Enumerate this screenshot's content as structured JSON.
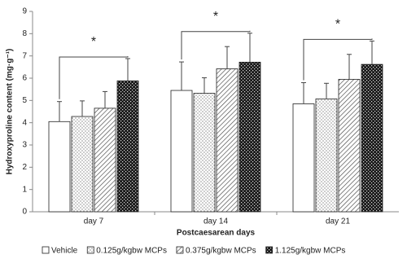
{
  "chart_data": {
    "type": "bar",
    "ylabel": "Hydroxyproline content (mg·g⁻¹)",
    "xlabel": "Postcaesarean days",
    "categories": [
      "day 7",
      "day 14",
      "day 21"
    ],
    "annotations": [
      "*",
      "*",
      "*"
    ],
    "series": [
      {
        "name": "Vehicle",
        "color": "#ffffff",
        "pattern": "none",
        "values": [
          4.05,
          5.45,
          4.85
        ],
        "errors": [
          0.9,
          1.28,
          0.95
        ]
      },
      {
        "name": "0.125g/kgbw MCPs",
        "color": "#ffffff",
        "pattern": "dots",
        "values": [
          4.28,
          5.32,
          5.07
        ],
        "errors": [
          0.7,
          0.7,
          0.7
        ]
      },
      {
        "name": "0.375g/kgbw MCPs",
        "color": "#ffffff",
        "pattern": "hatch",
        "values": [
          4.65,
          6.42,
          5.95
        ],
        "errors": [
          0.75,
          1.0,
          1.12
        ]
      },
      {
        "name": "1.125g/kgbw MCPs",
        "color": "#1a1a1a",
        "pattern": "checker",
        "values": [
          5.88,
          6.72,
          6.62
        ],
        "errors": [
          1.0,
          1.3,
          1.05
        ]
      }
    ],
    "ylim": [
      0,
      9
    ],
    "yticks": [
      0,
      1,
      2,
      3,
      4,
      5,
      6,
      7,
      8,
      9
    ]
  }
}
